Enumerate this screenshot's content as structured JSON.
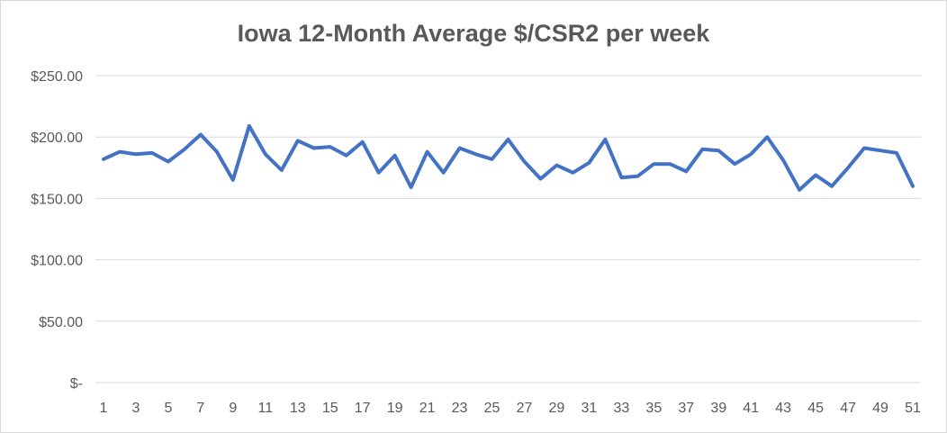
{
  "chart_data": {
    "type": "line",
    "title": "Iowa 12-Month Average $/CSR2 per week",
    "xlabel": "",
    "ylabel": "",
    "ylim": [
      0,
      250
    ],
    "y_ticks": [
      {
        "value": 250,
        "label": "$250.00"
      },
      {
        "value": 200,
        "label": "$200.00"
      },
      {
        "value": 150,
        "label": "$150.00"
      },
      {
        "value": 100,
        "label": "$100.00"
      },
      {
        "value": 50,
        "label": "$50.00"
      },
      {
        "value": 0,
        "label": "$-"
      }
    ],
    "x_tick_labels": [
      "1",
      "3",
      "5",
      "7",
      "9",
      "11",
      "13",
      "15",
      "17",
      "19",
      "21",
      "23",
      "25",
      "27",
      "29",
      "31",
      "33",
      "35",
      "37",
      "39",
      "41",
      "43",
      "45",
      "47",
      "49",
      "51"
    ],
    "grid": true,
    "line_color": "#4472c4",
    "series": [
      {
        "x": [
          1,
          2,
          3,
          4,
          5,
          6,
          7,
          8,
          9,
          10,
          11,
          12,
          13,
          14,
          15,
          16,
          17,
          18,
          19,
          20,
          21,
          22,
          23,
          24,
          25,
          26,
          27,
          28,
          29,
          30,
          31,
          32,
          33,
          34,
          35,
          36,
          37,
          38,
          39,
          40,
          41,
          42,
          43,
          44,
          45,
          46,
          47,
          48,
          49,
          50,
          51
        ],
        "values": [
          182,
          188,
          186,
          187,
          180,
          190,
          202,
          188,
          165,
          209,
          186,
          173,
          197,
          191,
          192,
          185,
          196,
          171,
          185,
          159,
          188,
          171,
          191,
          186,
          182,
          198,
          180,
          166,
          177,
          171,
          179,
          198,
          167,
          168,
          178,
          178,
          172,
          190,
          189,
          178,
          186,
          200,
          181,
          157,
          169,
          160,
          175,
          191,
          189,
          187,
          160
        ]
      }
    ]
  }
}
